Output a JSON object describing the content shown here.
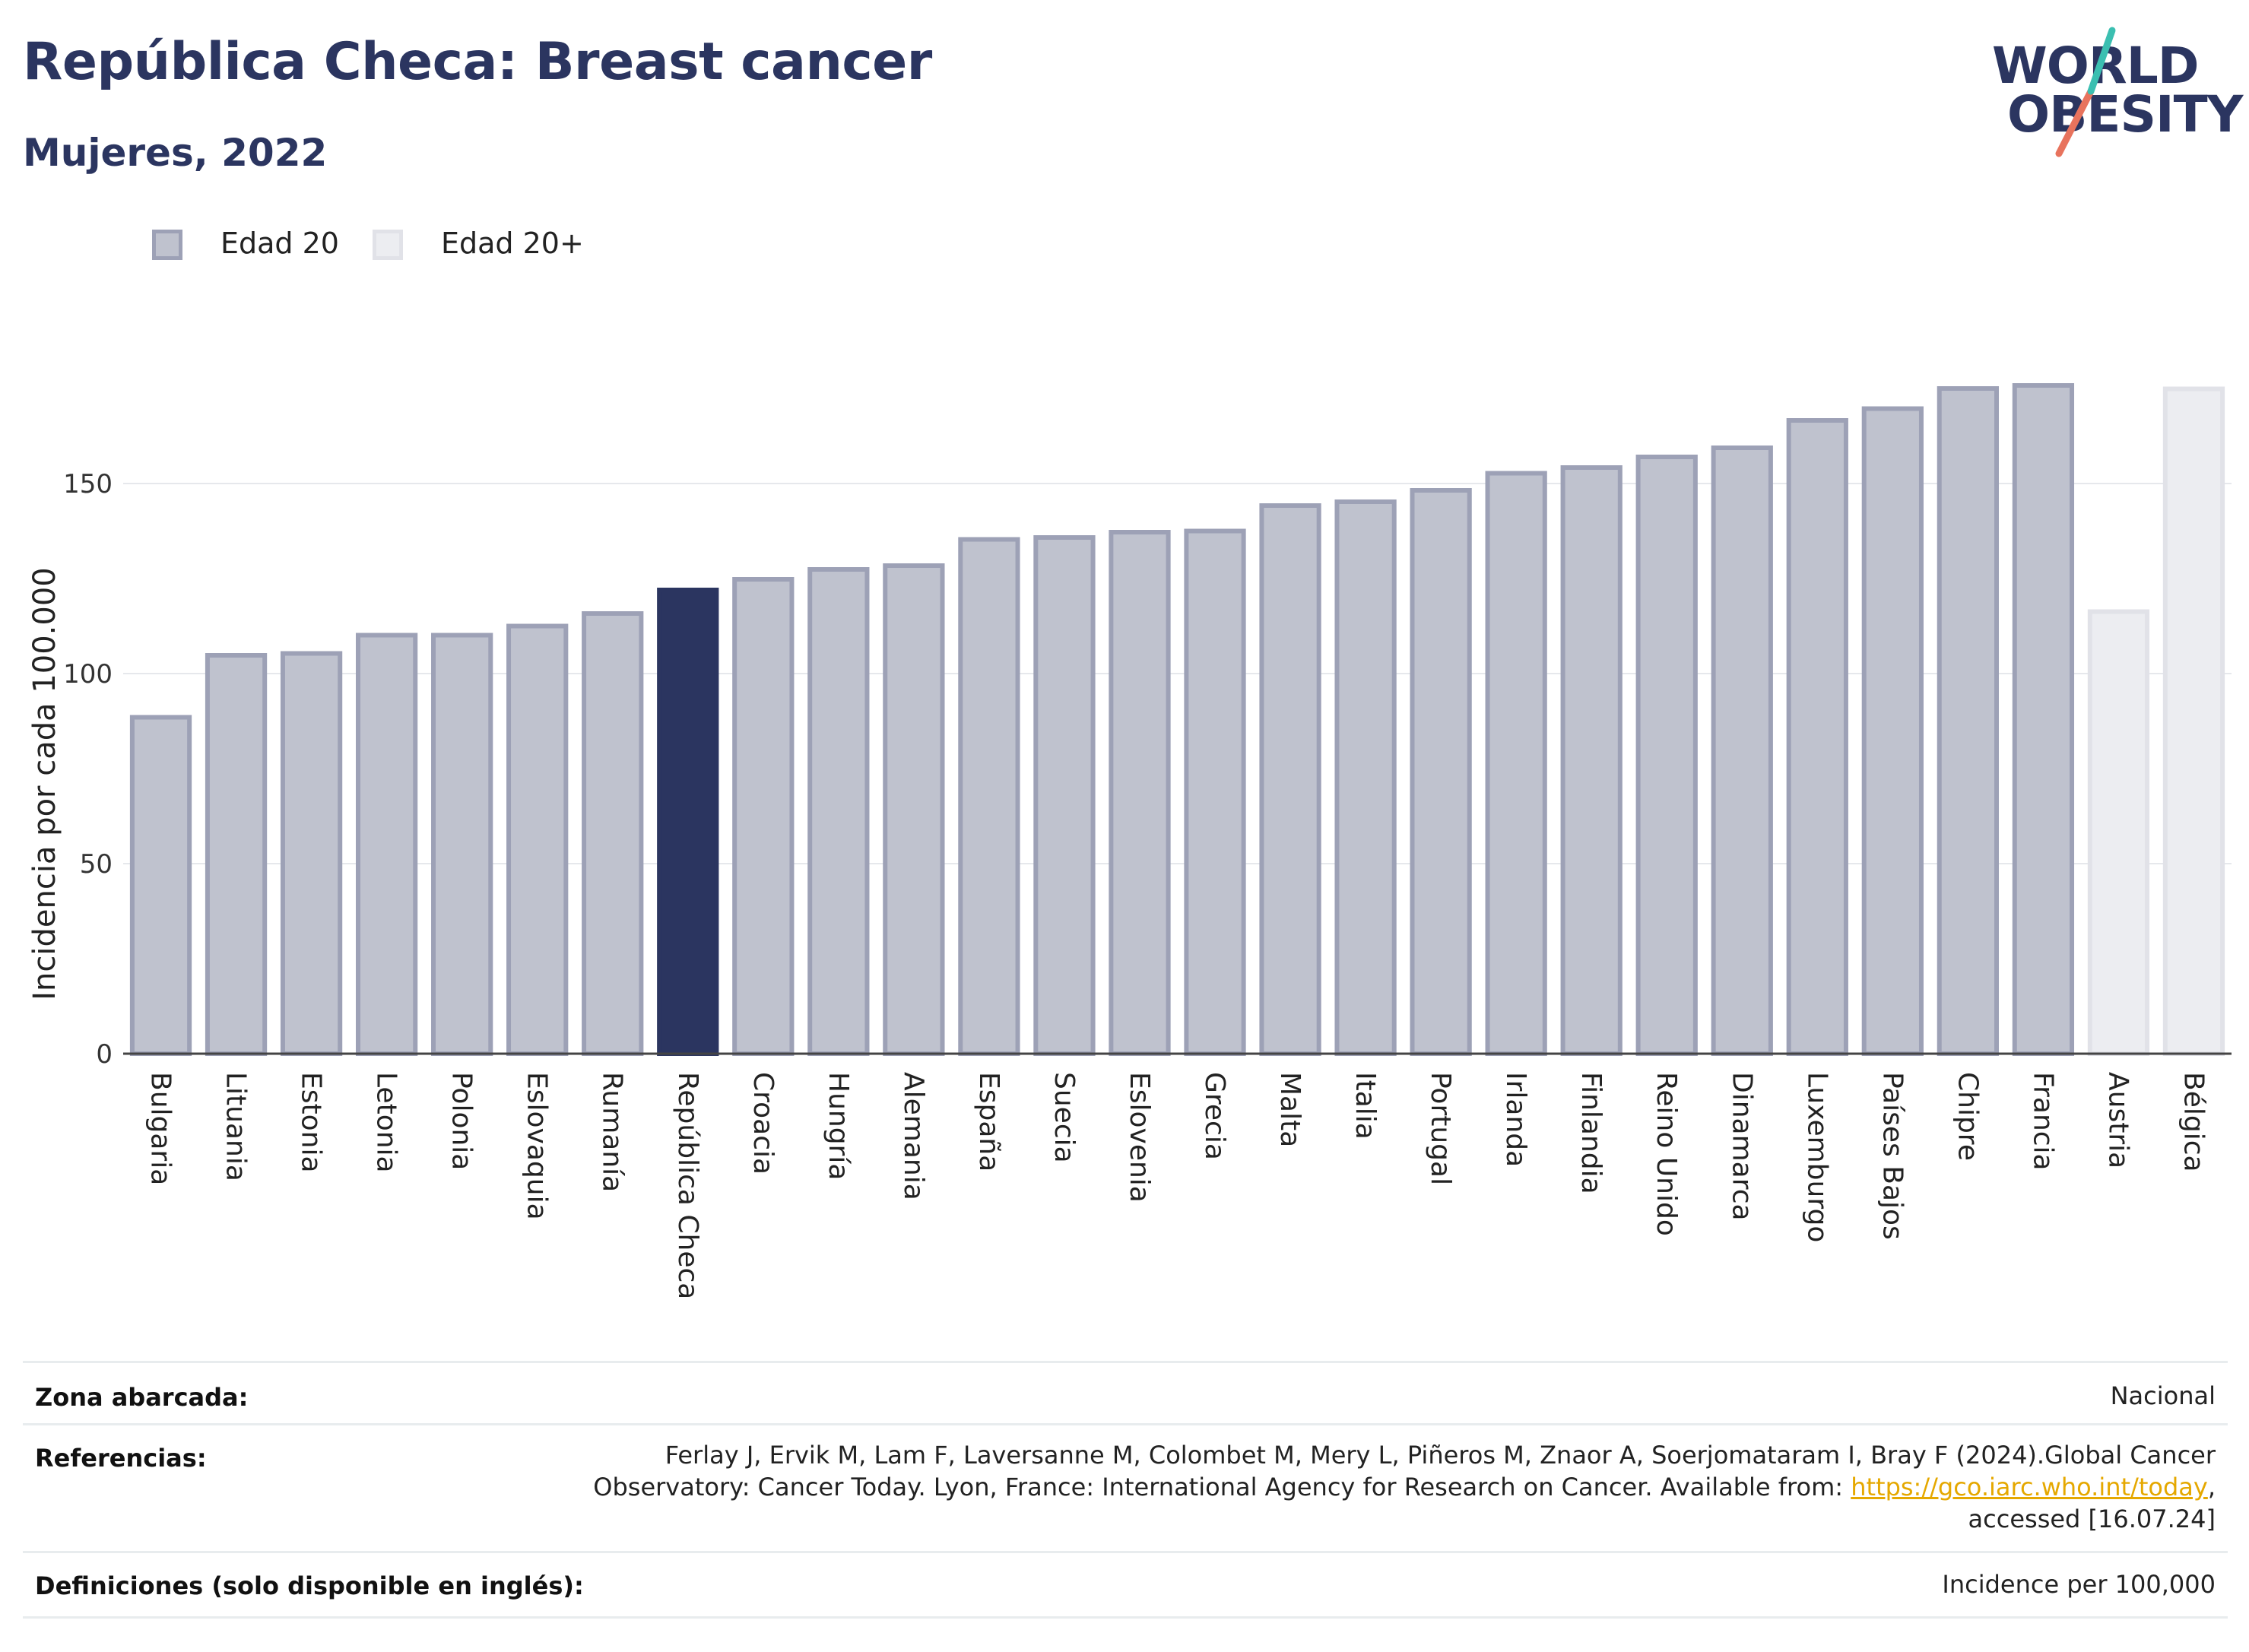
{
  "header": {
    "title": "República Checa: Breast cancer",
    "subtitle": "Mujeres, 2022"
  },
  "logo": {
    "line1": "WORLD",
    "line2": "OBESITY"
  },
  "legend": [
    {
      "label": "Edad 20",
      "color": "#bfc2ce",
      "border": "#9da1b6"
    },
    {
      "label": "Edad 20+",
      "color": "#ecedf1",
      "border": "#e1e2e8"
    }
  ],
  "colors": {
    "primary": "#2b3560",
    "bar": "#bfc2ce",
    "bar_border": "#9da1b6",
    "bar_light": "#ecedf1",
    "bar_light_border": "#e1e2e8",
    "highlight": "#2b3560",
    "grid": "#e6e8ec",
    "link": "#e5a800"
  },
  "chart_data": {
    "type": "bar",
    "ylabel": "Incidencia por cada 100.000",
    "xlabel": "",
    "ylim": [
      0,
      190
    ],
    "yticks": [
      0,
      50,
      100,
      150
    ],
    "grid": true,
    "legend_position": "top-left",
    "categories": [
      "Bulgaria",
      "Lituania",
      "Estonia",
      "Letonia",
      "Polonia",
      "Eslovaquia",
      "Rumanía",
      "República Checa",
      "Croacia",
      "Hungría",
      "Alemania",
      "España",
      "Suecia",
      "Eslovenia",
      "Grecia",
      "Malta",
      "Italia",
      "Portugal",
      "Irlanda",
      "Finlandia",
      "Reino Unido",
      "Dinamarca",
      "Luxemburgo",
      "Países Bajos",
      "Chipre",
      "Francia",
      "Austria",
      "Bélgica"
    ],
    "values": [
      88.5,
      104.8,
      105.3,
      110.1,
      110.1,
      112.5,
      115.8,
      122.0,
      124.8,
      127.4,
      128.4,
      135.3,
      135.8,
      137.2,
      137.5,
      144.2,
      145.2,
      148.2,
      152.7,
      154.2,
      157.0,
      159.4,
      166.6,
      169.7,
      175.0,
      175.8,
      116.3,
      174.9
    ],
    "groups": [
      "Edad 20",
      "Edad 20",
      "Edad 20",
      "Edad 20",
      "Edad 20",
      "Edad 20",
      "Edad 20",
      "Edad 20",
      "Edad 20",
      "Edad 20",
      "Edad 20",
      "Edad 20",
      "Edad 20",
      "Edad 20",
      "Edad 20",
      "Edad 20",
      "Edad 20",
      "Edad 20",
      "Edad 20",
      "Edad 20",
      "Edad 20",
      "Edad 20",
      "Edad 20",
      "Edad 20",
      "Edad 20",
      "Edad 20",
      "Edad 20+",
      "Edad 20+"
    ],
    "highlight": "República Checa"
  },
  "footer": {
    "zona_label": "Zona abarcada:",
    "zona_value": "Nacional",
    "ref_label": "Referencias:",
    "ref_line1": "Ferlay J, Ervik M, Lam F, Laversanne M, Colombet M, Mery L, Piñeros M, Znaor A, Soerjomataram I, Bray F (2024).Global Cancer",
    "ref_line2_pre": "Observatory: Cancer Today. Lyon, France: International Agency for Research on Cancer. Available from: ",
    "ref_link": "https://gco.iarc.who.int/today",
    "ref_line2_post": ",",
    "ref_line3": "accessed [16.07.24]",
    "def_label": "Definiciones (solo disponible en inglés):",
    "def_value": "Incidence per 100,000"
  }
}
